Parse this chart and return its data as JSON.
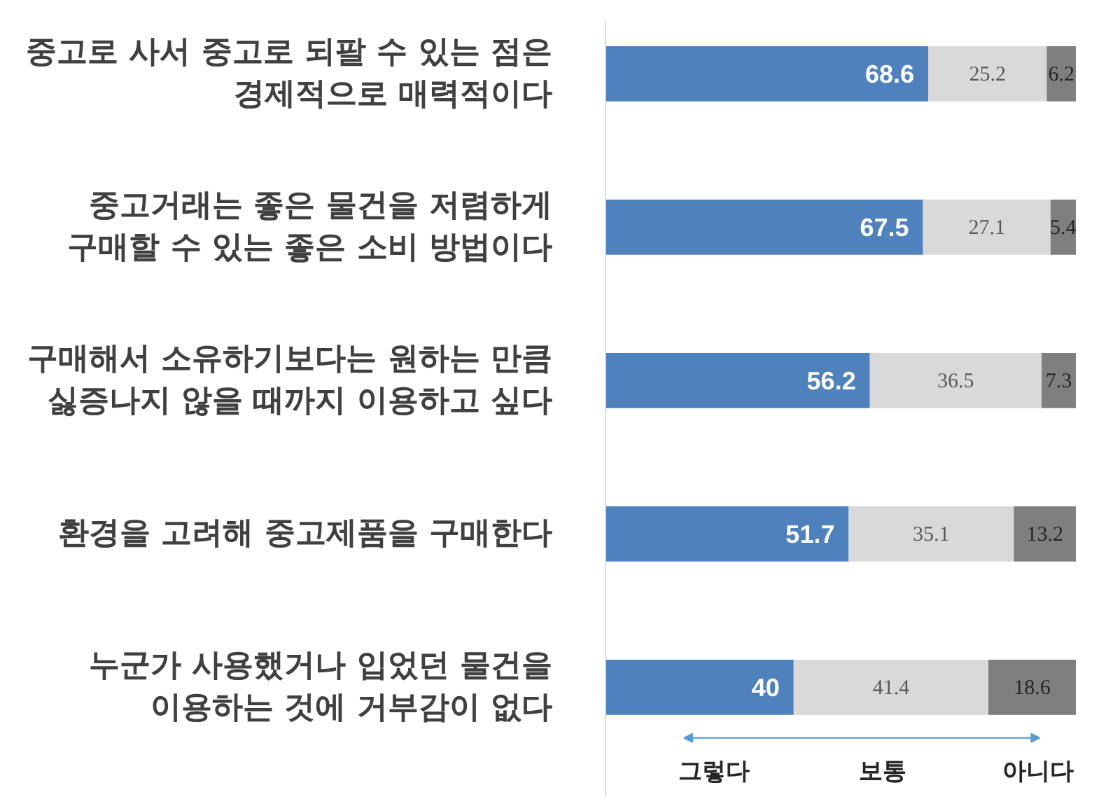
{
  "chart_data": {
    "type": "bar",
    "orientation": "horizontal",
    "stacked": true,
    "categories": [
      "중고로 사서 중고로 되팔 수 있는 점은\n경제적으로 매력적이다",
      "중고거래는 좋은 물건을 저렴하게\n구매할 수 있는 좋은 소비 방법이다",
      "구매해서 소유하기보다는 원하는 만큼\n싫증나지 않을 때까지 이용하고 싶다",
      "환경을 고려해 중고제품을 구매한다",
      "누군가 사용했거나 입었던 물건을\n이용하는 것에 거부감이 없다"
    ],
    "series": [
      {
        "name": "그렇다",
        "color": "#4f81bd",
        "values": [
          68.6,
          67.5,
          56.2,
          51.7,
          40
        ]
      },
      {
        "name": "보통",
        "color": "#d9d9d9",
        "values": [
          25.2,
          27.1,
          36.5,
          35.1,
          41.4
        ]
      },
      {
        "name": "아니다",
        "color": "#7f7f7f",
        "values": [
          6.2,
          5.4,
          7.3,
          13.2,
          18.6
        ]
      }
    ],
    "xlim": [
      0,
      100
    ],
    "data_labels": true,
    "tick_labels": "y"
  }
}
